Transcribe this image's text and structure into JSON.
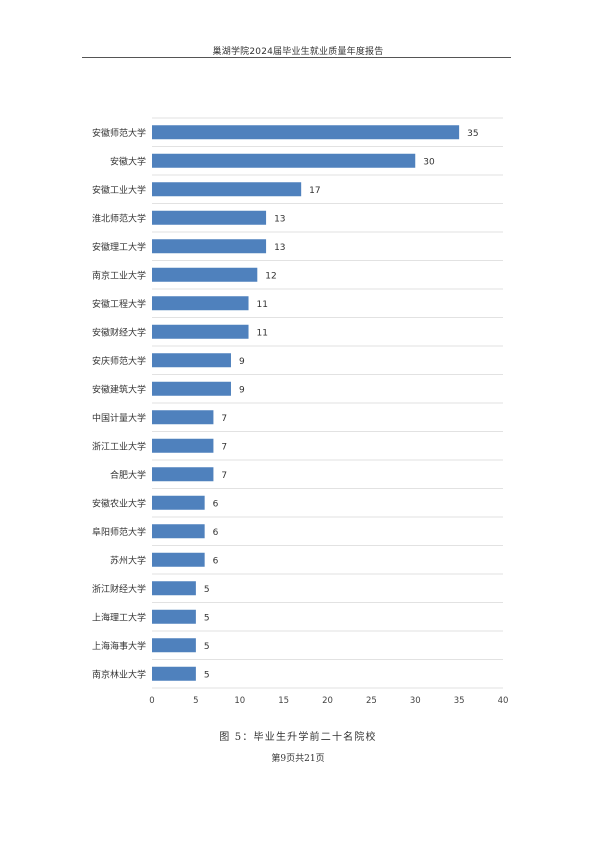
{
  "header": {
    "title": "巢湖学院2024届毕业生就业质量年度报告"
  },
  "chart_data": {
    "type": "bar",
    "orientation": "horizontal",
    "categories": [
      "安徽师范大学",
      "安徽大学",
      "安徽工业大学",
      "淮北师范大学",
      "安徽理工大学",
      "南京工业大学",
      "安徽工程大学",
      "安徽财经大学",
      "安庆师范大学",
      "安徽建筑大学",
      "中国计量大学",
      "浙江工业大学",
      "合肥大学",
      "安徽农业大学",
      "阜阳师范大学",
      "苏州大学",
      "浙江财经大学",
      "上海理工大学",
      "上海海事大学",
      "南京林业大学"
    ],
    "values": [
      35,
      30,
      17,
      13,
      13,
      12,
      11,
      11,
      9,
      9,
      7,
      7,
      7,
      6,
      6,
      6,
      5,
      5,
      5,
      5
    ],
    "xlim": [
      0,
      40
    ],
    "xticks": [
      0,
      5,
      10,
      15,
      20,
      25,
      30,
      35,
      40
    ],
    "grid": true,
    "bar_color": "#4f81bd"
  },
  "caption": "图 5：毕业生升学前二十名院校",
  "footer": "第9页共21页"
}
